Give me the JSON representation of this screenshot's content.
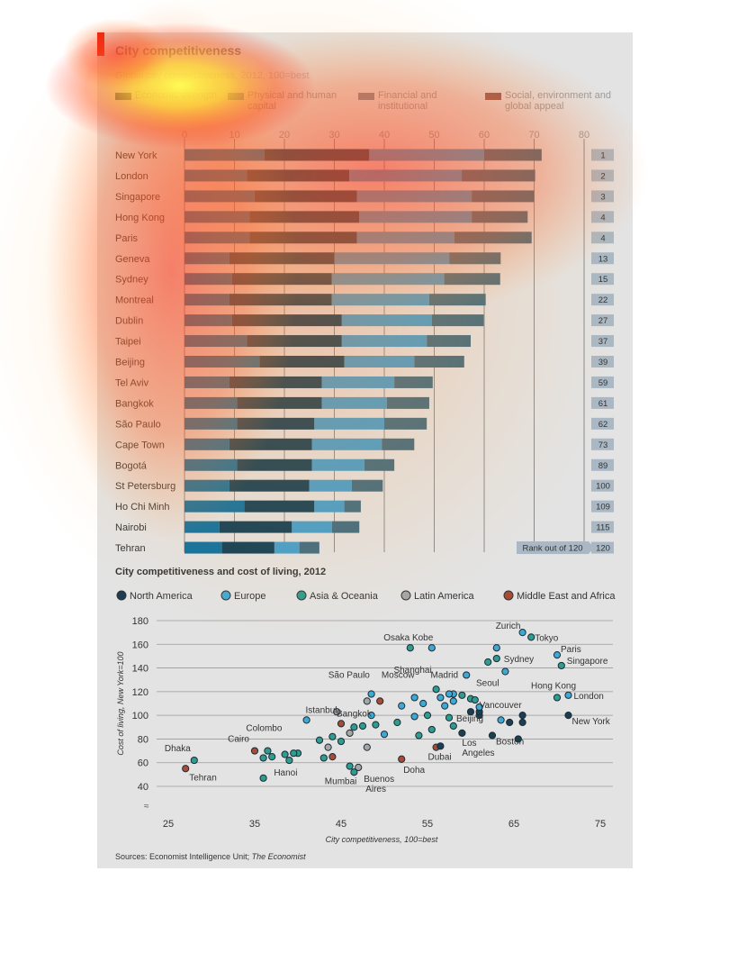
{
  "title": "City competitiveness",
  "subtitle": "Global city competitiveness, 2012, 100=best",
  "legend": [
    {
      "label": "Economic strength",
      "color": "#2a4a5e"
    },
    {
      "label": "Physical and human capital",
      "color": "#4f7f99"
    },
    {
      "label": "Financial and institutional",
      "color": "#7a8a94"
    },
    {
      "label": "Social, environment and global appeal",
      "color": "#8a5a55"
    }
  ],
  "rank_footer": "Rank out of 120",
  "scatter_title": "City competitiveness and cost of living, 2012",
  "source_prefix": "Sources: Economist Intelligence Unit; ",
  "source_italic": "The Economist",
  "chart_data": [
    {
      "type": "bar",
      "stacked": true,
      "orientation": "horizontal",
      "title": "City competitiveness",
      "subtitle": "Global city competitiveness, 2012, 100=best",
      "xlim": [
        0,
        80
      ],
      "xticks": [
        0,
        10,
        20,
        30,
        40,
        50,
        60,
        70,
        80
      ],
      "series_names": [
        "Economic strength",
        "Physical and human capital",
        "Financial and institutional",
        "Social, environment and global appeal"
      ],
      "cities": [
        {
          "name": "New York",
          "values": [
            16,
            21,
            23,
            11.5
          ],
          "rank": 1
        },
        {
          "name": "London",
          "values": [
            12.5,
            20.5,
            22.5,
            14.7
          ],
          "rank": 2
        },
        {
          "name": "Singapore",
          "values": [
            14,
            20.5,
            23,
            12.5
          ],
          "rank": 3
        },
        {
          "name": "Hong Kong",
          "values": [
            13,
            22,
            22.5,
            11.2
          ],
          "rank": 4
        },
        {
          "name": "Paris",
          "values": [
            13,
            21.5,
            19.5,
            15.5
          ],
          "rank": 4
        },
        {
          "name": "Geneva",
          "values": [
            9,
            21,
            23,
            10.3
          ],
          "rank": 13
        },
        {
          "name": "Sydney",
          "values": [
            9.5,
            20,
            22.5,
            11.2
          ],
          "rank": 15
        },
        {
          "name": "Montreal",
          "values": [
            9,
            20.5,
            19.5,
            11.3
          ],
          "rank": 22
        },
        {
          "name": "Dublin",
          "values": [
            9.5,
            22,
            18,
            10.4
          ],
          "rank": 27
        },
        {
          "name": "Taipei",
          "values": [
            12.5,
            19,
            17,
            8.8
          ],
          "rank": 37
        },
        {
          "name": "Beijing",
          "values": [
            15,
            17,
            14,
            10
          ],
          "rank": 39
        },
        {
          "name": "Tel Aviv",
          "values": [
            9,
            18.5,
            14.5,
            7.7
          ],
          "rank": 59
        },
        {
          "name": "Bangkok",
          "values": [
            10.5,
            17,
            13,
            8.5
          ],
          "rank": 61
        },
        {
          "name": "São Paulo",
          "values": [
            10.5,
            15.5,
            14,
            8.5
          ],
          "rank": 62
        },
        {
          "name": "Cape Town",
          "values": [
            9,
            16.5,
            14,
            6.5
          ],
          "rank": 73
        },
        {
          "name": "Bogotá",
          "values": [
            10.5,
            15,
            10.5,
            6
          ],
          "rank": 89
        },
        {
          "name": "St Petersburg",
          "values": [
            9,
            16,
            8.5,
            6.2
          ],
          "rank": 100
        },
        {
          "name": "Ho Chi Minh",
          "values": [
            12,
            14,
            6,
            3.3
          ],
          "rank": 109
        },
        {
          "name": "Nairobi",
          "values": [
            7,
            14.5,
            8,
            5.5
          ],
          "rank": 115
        },
        {
          "name": "Tehran",
          "values": [
            7.5,
            10.5,
            5,
            4
          ],
          "rank": 120
        }
      ]
    },
    {
      "type": "scatter",
      "title": "City competitiveness and cost of living, 2012",
      "xlabel": "City competitiveness, 100=best",
      "ylabel": "Cost of living, New York=100",
      "xlim": [
        25,
        75
      ],
      "ylim": [
        40,
        180
      ],
      "xticks": [
        25,
        35,
        45,
        55,
        65,
        75
      ],
      "yticks": [
        40,
        60,
        80,
        100,
        120,
        140,
        160,
        180
      ],
      "groups": [
        {
          "name": "North America",
          "color": "#1d3e52"
        },
        {
          "name": "Europe",
          "color": "#3fa9d5"
        },
        {
          "name": "Asia & Oceania",
          "color": "#2e9c8f"
        },
        {
          "name": "Latin America",
          "color": "#a6a6a6"
        },
        {
          "name": "Middle East and Africa",
          "color": "#a64b35"
        }
      ],
      "points": [
        {
          "x": 71.3,
          "y": 100,
          "g": 0,
          "label": "New York"
        },
        {
          "x": 71.3,
          "y": 117,
          "g": 1,
          "label": "London"
        },
        {
          "x": 70.5,
          "y": 142,
          "g": 2,
          "label": "Singapore"
        },
        {
          "x": 70.0,
          "y": 115,
          "g": 2,
          "label": "Hong Kong"
        },
        {
          "x": 70.0,
          "y": 151,
          "g": 1,
          "label": "Paris"
        },
        {
          "x": 67.0,
          "y": 166,
          "g": 2,
          "label": "Tokyo"
        },
        {
          "x": 66.0,
          "y": 170,
          "g": 1,
          "label": "Zurich"
        },
        {
          "x": 63.0,
          "y": 148,
          "g": 2,
          "label": "Sydney"
        },
        {
          "x": 61.0,
          "y": 100,
          "g": 0,
          "label": "Vancouver"
        },
        {
          "x": 60.0,
          "y": 114,
          "g": 2,
          "label": "Seoul"
        },
        {
          "x": 58.0,
          "y": 118,
          "g": 1,
          "label": "Madrid"
        },
        {
          "x": 59.0,
          "y": 85,
          "g": 0,
          "label": "Los Angeles"
        },
        {
          "x": 62.5,
          "y": 83,
          "g": 0,
          "label": "Boston"
        },
        {
          "x": 57.5,
          "y": 98,
          "g": 2,
          "label": "Beijing"
        },
        {
          "x": 53.0,
          "y": 157,
          "g": 2,
          "label": "Osaka Kobe"
        },
        {
          "x": 55.5,
          "y": 157,
          "g": 1,
          "label": ""
        },
        {
          "x": 56.0,
          "y": 122,
          "g": 2,
          "label": "Shanghai"
        },
        {
          "x": 49.5,
          "y": 112,
          "g": 4,
          "label": "Moscow"
        },
        {
          "x": 48.0,
          "y": 112,
          "g": 3,
          "label": "São Paulo"
        },
        {
          "x": 45.0,
          "y": 93,
          "g": 4,
          "label": "Istanbul"
        },
        {
          "x": 46.5,
          "y": 90,
          "g": 2,
          "label": "Bangkok"
        },
        {
          "x": 35.0,
          "y": 70,
          "g": 4,
          "label": "Cairo"
        },
        {
          "x": 36.5,
          "y": 70,
          "g": 2,
          "label": "Colombo"
        },
        {
          "x": 28.0,
          "y": 62,
          "g": 2,
          "label": "Dhaka"
        },
        {
          "x": 27.0,
          "y": 55,
          "g": 4,
          "label": "Tehran"
        },
        {
          "x": 39.0,
          "y": 62,
          "g": 2,
          "label": "Hanoi"
        },
        {
          "x": 46.0,
          "y": 57,
          "g": 2,
          "label": "Mumbai"
        },
        {
          "x": 47.0,
          "y": 56,
          "g": 3,
          "label": "Buenos Aires"
        },
        {
          "x": 52.0,
          "y": 63,
          "g": 4,
          "label": "Doha"
        },
        {
          "x": 56.0,
          "y": 73,
          "g": 4,
          "label": "Dubai"
        },
        {
          "x": 40.0,
          "y": 68,
          "g": 2,
          "label": ""
        },
        {
          "x": 37.0,
          "y": 65,
          "g": 2,
          "label": ""
        },
        {
          "x": 36.0,
          "y": 47,
          "g": 2,
          "label": ""
        },
        {
          "x": 39.5,
          "y": 68,
          "g": 2,
          "label": ""
        },
        {
          "x": 41.0,
          "y": 96,
          "g": 1,
          "label": ""
        },
        {
          "x": 44.0,
          "y": 82,
          "g": 2,
          "label": ""
        },
        {
          "x": 45.0,
          "y": 78,
          "g": 2,
          "label": ""
        },
        {
          "x": 44.5,
          "y": 103,
          "g": 3,
          "label": ""
        },
        {
          "x": 43.5,
          "y": 73,
          "g": 3,
          "label": ""
        },
        {
          "x": 44.0,
          "y": 65,
          "g": 4,
          "label": ""
        },
        {
          "x": 42.5,
          "y": 79,
          "g": 2,
          "label": ""
        },
        {
          "x": 43.0,
          "y": 64,
          "g": 2,
          "label": ""
        },
        {
          "x": 46.0,
          "y": 85,
          "g": 3,
          "label": ""
        },
        {
          "x": 47.5,
          "y": 91,
          "g": 2,
          "label": ""
        },
        {
          "x": 48.0,
          "y": 73,
          "g": 3,
          "label": ""
        },
        {
          "x": 48.5,
          "y": 100,
          "g": 1,
          "label": ""
        },
        {
          "x": 50.0,
          "y": 84,
          "g": 1,
          "label": ""
        },
        {
          "x": 51.5,
          "y": 94,
          "g": 2,
          "label": ""
        },
        {
          "x": 52.0,
          "y": 108,
          "g": 1,
          "label": ""
        },
        {
          "x": 53.5,
          "y": 99,
          "g": 1,
          "label": ""
        },
        {
          "x": 53.5,
          "y": 115,
          "g": 1,
          "label": ""
        },
        {
          "x": 54.5,
          "y": 110,
          "g": 1,
          "label": ""
        },
        {
          "x": 55.0,
          "y": 100,
          "g": 2,
          "label": ""
        },
        {
          "x": 55.5,
          "y": 88,
          "g": 2,
          "label": ""
        },
        {
          "x": 56.5,
          "y": 115,
          "g": 1,
          "label": ""
        },
        {
          "x": 57.0,
          "y": 108,
          "g": 1,
          "label": ""
        },
        {
          "x": 57.5,
          "y": 118,
          "g": 1,
          "label": ""
        },
        {
          "x": 58.0,
          "y": 112,
          "g": 1,
          "label": ""
        },
        {
          "x": 59.0,
          "y": 117,
          "g": 2,
          "label": ""
        },
        {
          "x": 59.5,
          "y": 134,
          "g": 1,
          "label": ""
        },
        {
          "x": 60.0,
          "y": 103,
          "g": 0,
          "label": ""
        },
        {
          "x": 61.0,
          "y": 103,
          "g": 0,
          "label": ""
        },
        {
          "x": 62.0,
          "y": 145,
          "g": 2,
          "label": ""
        },
        {
          "x": 63.0,
          "y": 157,
          "g": 1,
          "label": ""
        },
        {
          "x": 63.5,
          "y": 96,
          "g": 1,
          "label": ""
        },
        {
          "x": 64.0,
          "y": 137,
          "g": 1,
          "label": ""
        },
        {
          "x": 64.5,
          "y": 94,
          "g": 0,
          "label": ""
        },
        {
          "x": 65.5,
          "y": 80,
          "g": 0,
          "label": ""
        },
        {
          "x": 66.0,
          "y": 100,
          "g": 0,
          "label": ""
        },
        {
          "x": 66.0,
          "y": 94,
          "g": 0,
          "label": ""
        },
        {
          "x": 56.5,
          "y": 74,
          "g": 0,
          "label": ""
        },
        {
          "x": 58.0,
          "y": 91,
          "g": 2,
          "label": ""
        },
        {
          "x": 54.0,
          "y": 83,
          "g": 2,
          "label": ""
        },
        {
          "x": 49.0,
          "y": 92,
          "g": 2,
          "label": ""
        },
        {
          "x": 46.5,
          "y": 52,
          "g": 2,
          "label": ""
        },
        {
          "x": 38.5,
          "y": 67,
          "g": 2,
          "label": ""
        },
        {
          "x": 36.0,
          "y": 64,
          "g": 2,
          "label": ""
        },
        {
          "x": 48.5,
          "y": 118,
          "g": 1,
          "label": ""
        },
        {
          "x": 61.0,
          "y": 107,
          "g": 1,
          "label": ""
        },
        {
          "x": 60.5,
          "y": 113,
          "g": 2,
          "label": ""
        }
      ]
    }
  ]
}
